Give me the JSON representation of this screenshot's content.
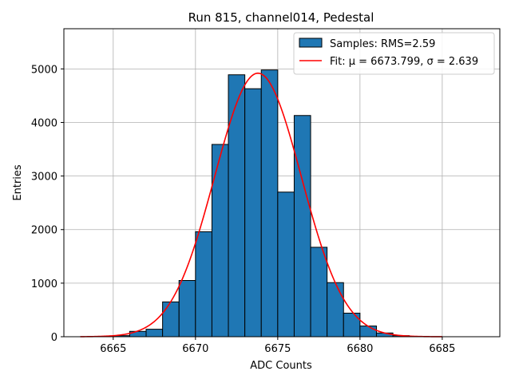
{
  "chart_data": {
    "type": "bar",
    "title": "Run 815, channel014, Pedestal",
    "xlabel": "ADC Counts",
    "ylabel": "Entries",
    "xlim": [
      6662,
      6688.5
    ],
    "ylim": [
      0,
      5750
    ],
    "x_ticks": [
      6665,
      6670,
      6675,
      6680,
      6685
    ],
    "y_ticks": [
      0,
      1000,
      2000,
      3000,
      4000,
      5000
    ],
    "grid": true,
    "legend_position": "top-right",
    "histogram": {
      "name": "Samples: RMS=2.59",
      "color": "#1f77b4",
      "edge_color": "#000000",
      "bin_width": 1,
      "bin_starts": [
        6665,
        6666,
        6667,
        6668,
        6669,
        6670,
        6671,
        6672,
        6673,
        6674,
        6675,
        6676,
        6677,
        6678,
        6679,
        6680,
        6681,
        6682
      ],
      "values": [
        20,
        100,
        140,
        650,
        1050,
        1960,
        3590,
        4890,
        4630,
        4980,
        2700,
        4130,
        1670,
        1010,
        440,
        200,
        70,
        20
      ]
    },
    "fit": {
      "name": "Fit: μ = 6673.799, σ = 2.639",
      "color": "#ff0000",
      "mu": 6673.799,
      "sigma": 2.639,
      "amplitude": 4920,
      "x_range": [
        6663,
        6685
      ]
    }
  }
}
